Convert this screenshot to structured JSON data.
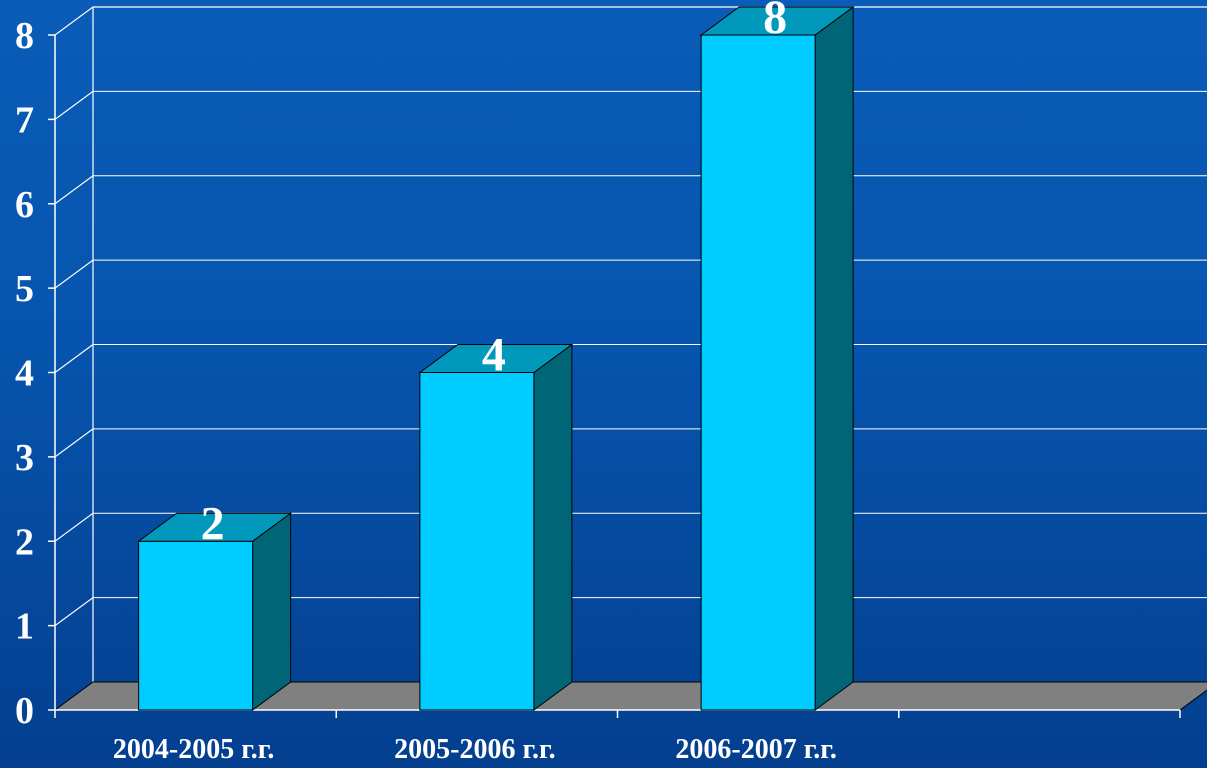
{
  "chart_data": {
    "type": "bar",
    "categories": [
      "2004-2005 г.г.",
      "2005-2006 г.г.",
      "2006-2007 г.г.",
      ""
    ],
    "values": [
      2,
      4,
      8,
      null
    ],
    "data_labels": [
      "2",
      "4",
      "8",
      ""
    ],
    "title": "",
    "xlabel": "",
    "ylabel": "",
    "ylim": [
      0,
      8
    ],
    "yticks": [
      0,
      1,
      2,
      3,
      4,
      5,
      6,
      7,
      8
    ],
    "grid": true,
    "style": "3d",
    "colors": {
      "background": "#0557b0",
      "bar_front": "#00ccff",
      "bar_top": "#0099bb",
      "bar_side": "#006677",
      "floor": "#808080",
      "grid": "#ffffff",
      "text": "#ffffff"
    }
  }
}
